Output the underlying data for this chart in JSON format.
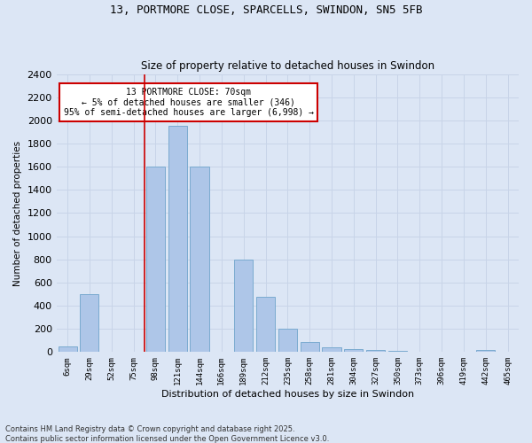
{
  "title_line1": "13, PORTMORE CLOSE, SPARCELLS, SWINDON, SN5 5FB",
  "title_line2": "Size of property relative to detached houses in Swindon",
  "xlabel": "Distribution of detached houses by size in Swindon",
  "ylabel": "Number of detached properties",
  "categories": [
    "6sqm",
    "29sqm",
    "52sqm",
    "75sqm",
    "98sqm",
    "121sqm",
    "144sqm",
    "166sqm",
    "189sqm",
    "212sqm",
    "235sqm",
    "258sqm",
    "281sqm",
    "304sqm",
    "327sqm",
    "350sqm",
    "373sqm",
    "396sqm",
    "419sqm",
    "442sqm",
    "465sqm"
  ],
  "values": [
    50,
    500,
    5,
    5,
    1600,
    1950,
    1600,
    5,
    800,
    480,
    200,
    90,
    40,
    25,
    15,
    8,
    5,
    5,
    5,
    20,
    5
  ],
  "bar_color": "#aec6e8",
  "bar_edge_color": "#7aaad0",
  "vline_color": "#cc0000",
  "vline_pos": 3.5,
  "annotation_text": "13 PORTMORE CLOSE: 70sqm\n← 5% of detached houses are smaller (346)\n95% of semi-detached houses are larger (6,998) →",
  "annotation_box_color": "#ffffff",
  "annotation_border_color": "#cc0000",
  "ylim": [
    0,
    2400
  ],
  "yticks": [
    0,
    200,
    400,
    600,
    800,
    1000,
    1200,
    1400,
    1600,
    1800,
    2000,
    2200,
    2400
  ],
  "grid_color": "#c8d4e8",
  "background_color": "#dce6f5",
  "footer_line1": "Contains HM Land Registry data © Crown copyright and database right 2025.",
  "footer_line2": "Contains public sector information licensed under the Open Government Licence v3.0."
}
